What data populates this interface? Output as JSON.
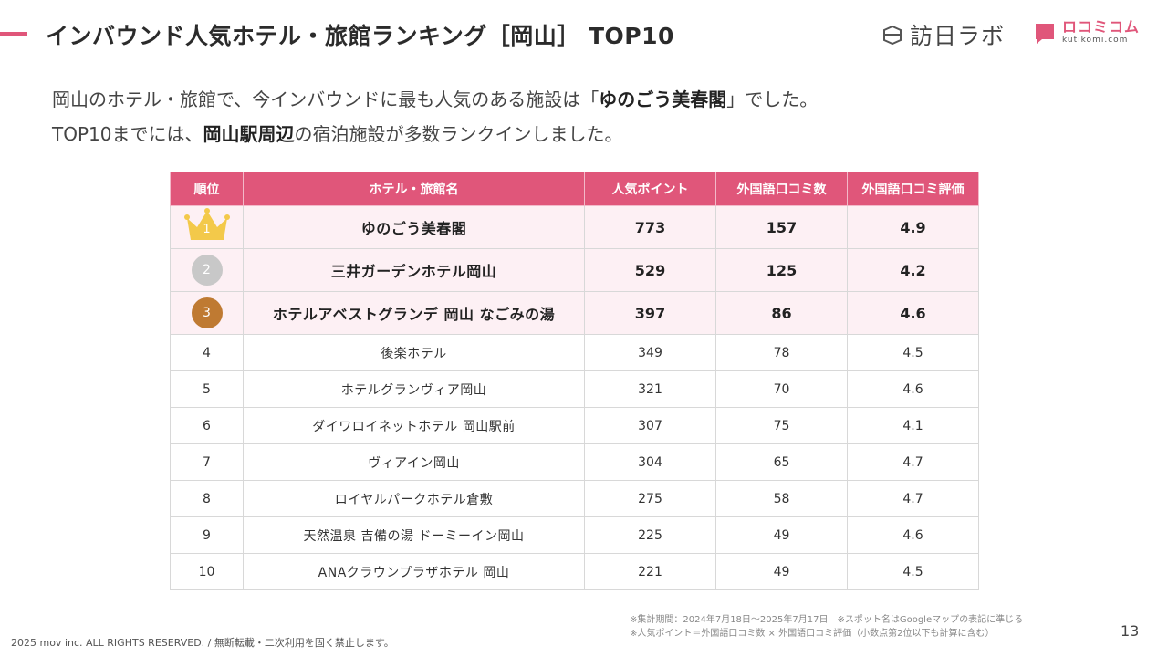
{
  "header": {
    "title": "インバウンド人気ホテル・旅館ランキング［岡山］ TOP10",
    "logo_houjin": "訪日ラボ",
    "logo_kuchikomi_jp": "ロコミコム",
    "logo_kuchikomi_en": "kutikomi.com",
    "accent_color": "#e0567a"
  },
  "summary": {
    "line1_pre": "岡山のホテル・旅館で、今インバウンドに最も人気のある施設は「",
    "line1_strong": "ゆのごう美春閣",
    "line1_post": "」でした。",
    "line2_pre": "TOP10までには、",
    "line2_strong": "岡山駅周辺",
    "line2_post": "の宿泊施設が多数ランクインしました。"
  },
  "table": {
    "headers": [
      "順位",
      "ホテル・旅館名",
      "人気ポイント",
      "外国語口コミ数",
      "外国語口コミ評価"
    ],
    "rows": [
      {
        "rank": "1",
        "name": "ゆのごう美春閣",
        "points": "773",
        "reviews": "157",
        "rating": "4.9"
      },
      {
        "rank": "2",
        "name": "三井ガーデンホテル岡山",
        "points": "529",
        "reviews": "125",
        "rating": "4.2"
      },
      {
        "rank": "3",
        "name": "ホテルアベストグランデ 岡山 なごみの湯",
        "points": "397",
        "reviews": "86",
        "rating": "4.6"
      },
      {
        "rank": "4",
        "name": "後楽ホテル",
        "points": "349",
        "reviews": "78",
        "rating": "4.5"
      },
      {
        "rank": "5",
        "name": "ホテルグランヴィア岡山",
        "points": "321",
        "reviews": "70",
        "rating": "4.6"
      },
      {
        "rank": "6",
        "name": "ダイワロイネットホテル 岡山駅前",
        "points": "307",
        "reviews": "75",
        "rating": "4.1"
      },
      {
        "rank": "7",
        "name": "ヴィアイン岡山",
        "points": "304",
        "reviews": "65",
        "rating": "4.7"
      },
      {
        "rank": "8",
        "name": "ロイヤルパークホテル倉敷",
        "points": "275",
        "reviews": "58",
        "rating": "4.7"
      },
      {
        "rank": "9",
        "name": "天然温泉 吉備の湯 ドーミーイン岡山",
        "points": "225",
        "reviews": "49",
        "rating": "4.6"
      },
      {
        "rank": "10",
        "name": "ANAクラウンプラザホテル 岡山",
        "points": "221",
        "reviews": "49",
        "rating": "4.5"
      }
    ]
  },
  "notes": [
    "※集計期間：2024年7月18日〜2025年7月17日　※スポット名はGoogleマップの表記に準じる",
    "※人気ポイント＝外国語口コミ数 × 外国語口コミ評価（小数点第2位以下も計算に含む）"
  ],
  "footer": {
    "copyright": "2025 mov inc. ALL RIGHTS RESERVED. / 無断転載・二次利用を固く禁止します。",
    "page_number": "13"
  }
}
